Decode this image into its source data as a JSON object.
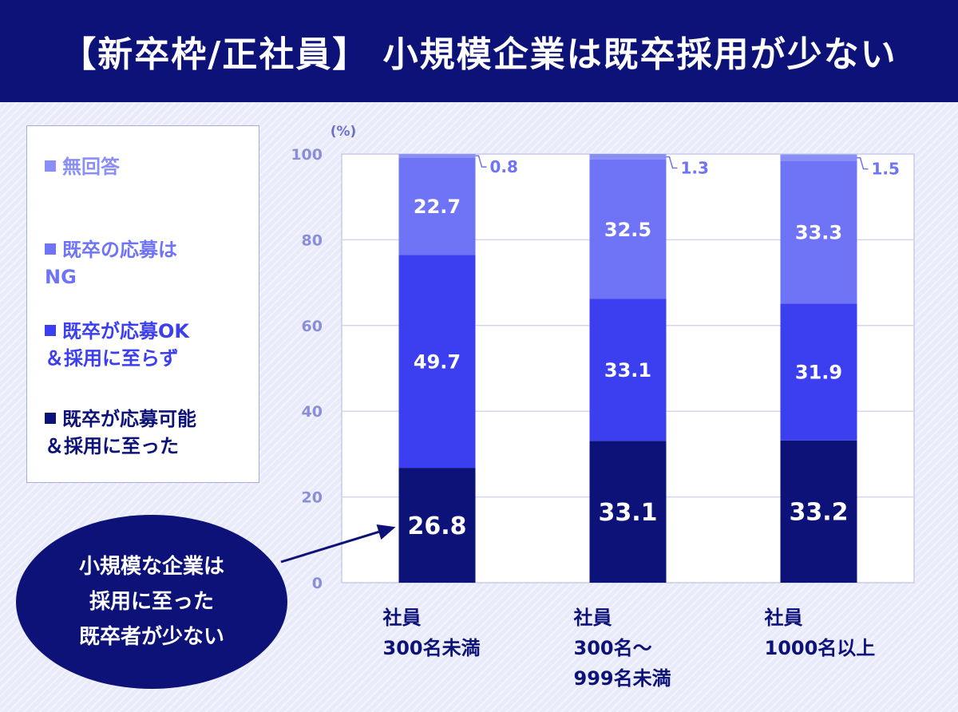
{
  "header": {
    "title": "【新卒枠/正社員】 小規模企業は既卒採用が少ない"
  },
  "legend": [
    {
      "label": "無回答",
      "color": "#8a8ef7"
    },
    {
      "label": "既卒の応募は\nNG",
      "color": "#6f74f6"
    },
    {
      "label": "既卒が応募OK\n＆採用に至らず",
      "color": "#3b3ff0"
    },
    {
      "label": "既卒が応募可能\n＆採用に至った",
      "color": "#0d1278"
    }
  ],
  "callout": {
    "text": "小規模な企業は\n採用に至った\n既卒者が少ない"
  },
  "chart_data": {
    "type": "bar",
    "stacked": true,
    "unit_label": "(%)",
    "ylim": [
      0,
      100
    ],
    "yticks": [
      0,
      20,
      40,
      60,
      80,
      100
    ],
    "grid": true,
    "categories": [
      [
        "社員",
        "300名未満"
      ],
      [
        "社員",
        "300名～",
        "999名未満"
      ],
      [
        "社員",
        "1000名以上"
      ]
    ],
    "series": [
      {
        "name": "既卒が応募可能＆採用に至った",
        "color": "#0d1278",
        "values": [
          26.8,
          33.1,
          33.2
        ]
      },
      {
        "name": "既卒が応募OK＆採用に至らず",
        "color": "#3b3ff0",
        "values": [
          49.7,
          33.1,
          31.9
        ]
      },
      {
        "name": "既卒の応募はNG",
        "color": "#6f74f6",
        "values": [
          22.7,
          32.5,
          33.3
        ]
      },
      {
        "name": "無回答",
        "color": "#8a8ef7",
        "values": [
          0.8,
          1.3,
          1.5
        ]
      }
    ]
  }
}
